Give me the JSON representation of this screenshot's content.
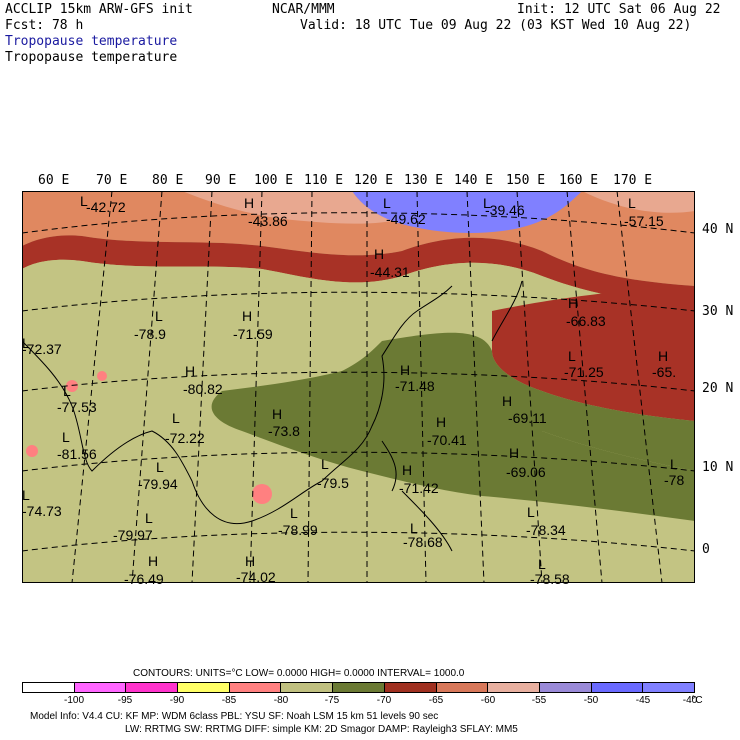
{
  "header": {
    "model": "ACCLIP 15km ARW-GFS init",
    "fcst": "Fcst:   78 h",
    "center": "NCAR/MMM",
    "init": "Init: 12 UTC Sat 06 Aug 22",
    "valid": "Valid: 18 UTC Tue 09 Aug 22 (03 KST Wed 10 Aug 22)",
    "field_blue": "Tropopause temperature",
    "field_black": "Tropopause temperature"
  },
  "map": {
    "lon_labels": [
      "60 E",
      "70 E",
      "80 E",
      "90 E",
      "100 E",
      "110 E",
      "120 E",
      "130 E",
      "140 E",
      "150 E",
      "160 E",
      "170 E"
    ],
    "lat_labels": [
      "40 N",
      "30 N",
      "20 N",
      "10 N",
      "0"
    ],
    "extrema": [
      {
        "sym": "L",
        "val": "-42.72"
      },
      {
        "sym": "H",
        "val": "-43.86"
      },
      {
        "sym": "L",
        "val": "-49.62"
      },
      {
        "sym": "L",
        "val": "-39.46"
      },
      {
        "sym": "L",
        "val": "-57.15"
      },
      {
        "sym": "H",
        "val": "-44.31"
      },
      {
        "sym": "L",
        "val": "-78.9"
      },
      {
        "sym": "H",
        "val": "-71.59"
      },
      {
        "sym": "H",
        "val": "-66.83"
      },
      {
        "sym": "L",
        "val": "-72.37"
      },
      {
        "sym": "H",
        "val": "-80.82"
      },
      {
        "sym": "H",
        "val": "-71.48"
      },
      {
        "sym": "L",
        "val": "-71.25"
      },
      {
        "sym": "H",
        "val": "-65."
      },
      {
        "sym": "L",
        "val": "-77.53"
      },
      {
        "sym": "L",
        "val": "-81.56"
      },
      {
        "sym": "L",
        "val": "-72.22"
      },
      {
        "sym": "H",
        "val": "-73.8"
      },
      {
        "sym": "H",
        "val": "-70.41"
      },
      {
        "sym": "H",
        "val": "-69.11"
      },
      {
        "sym": "H",
        "val": "-69.06"
      },
      {
        "sym": "L",
        "val": "-79.5"
      },
      {
        "sym": "H",
        "val": "-71.42"
      },
      {
        "sym": "L",
        "val": "-79.94"
      },
      {
        "sym": "L",
        "val": "-74.73"
      },
      {
        "sym": "L",
        "val": "-78"
      },
      {
        "sym": "L",
        "val": "-79.97"
      },
      {
        "sym": "L",
        "val": "-78.99"
      },
      {
        "sym": "L",
        "val": "-78.68"
      },
      {
        "sym": "L",
        "val": "-78.34"
      },
      {
        "sym": "H",
        "val": "-76.49"
      },
      {
        "sym": "H",
        "val": "-74.02"
      },
      {
        "sym": "L",
        "val": "-78.58"
      }
    ]
  },
  "contours": {
    "line": "CONTOURS:  UNITS=°C  LOW=  0.0000       HIGH=  0.0000       INTERVAL=   1000.0"
  },
  "colorbar": {
    "colors": [
      "#ffffff",
      "#ff66ff",
      "#ff33cc",
      "#ffff66",
      "#ff8080",
      "#c0c080",
      "#6b7a34",
      "#a03020",
      "#d8785a",
      "#e8b0a0",
      "#9a8ad8",
      "#6a6aff",
      "#8080ff"
    ],
    "ticks": [
      "-100",
      "-95",
      "-90",
      "-85",
      "-80",
      "-75",
      "-70",
      "-65",
      "-60",
      "-55",
      "-50",
      "-45",
      "-40"
    ],
    "unit": "°C"
  },
  "footer": {
    "line1": "Model Info: V4.4       CU: KF        MP: WDM 6class   PBL: YSU       SF: Noah LSM     15 km    51 levels   90 sec",
    "line2": "LW: RRTMG    SW: RRTMG    DIFF: simple KM: 2D Smagor DAMP: Rayleigh3  SFLAY: MM5"
  }
}
